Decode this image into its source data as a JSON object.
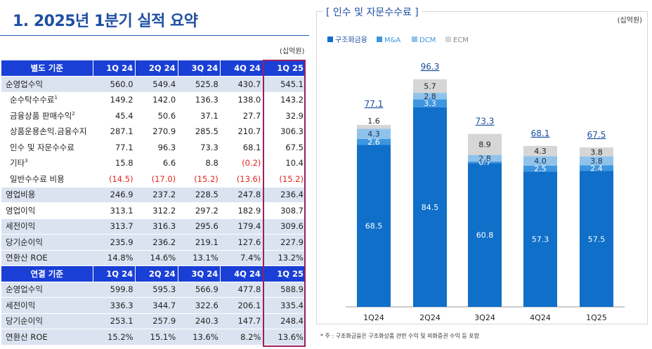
{
  "page_title": "1. 2025년 1분기 실적 요약",
  "unit_left": "(십억원)",
  "table_standalone": {
    "header": [
      "별도 기준",
      "1Q 24",
      "2Q 24",
      "3Q 24",
      "4Q 24",
      "1Q 25"
    ],
    "rows": [
      {
        "label": "순영업수익",
        "sup": "",
        "values": [
          "560.0",
          "549.4",
          "525.8",
          "430.7",
          "545.1"
        ]
      },
      {
        "label": "순수탁수수료",
        "sup": "1",
        "values": [
          "149.2",
          "142.0",
          "136.3",
          "138.0",
          "143.2"
        ]
      },
      {
        "label": "금융상품 판매수익",
        "sup": "2",
        "values": [
          "45.4",
          "50.6",
          "37.1",
          "27.7",
          "32.9"
        ]
      },
      {
        "label": "상품운용손익.금융수지",
        "sup": "",
        "values": [
          "287.1",
          "270.9",
          "285.5",
          "210.7",
          "306.3"
        ]
      },
      {
        "label": "인수 및 자문수수료",
        "sup": "",
        "values": [
          "77.1",
          "96.3",
          "73.3",
          "68.1",
          "67.5"
        ]
      },
      {
        "label": "기타",
        "sup": "3",
        "values": [
          "15.8",
          "6.6",
          "8.8",
          "(0.2)",
          "10.4"
        ]
      },
      {
        "label": "일반수수료 비용",
        "sup": "",
        "values": [
          "(14.5)",
          "(17.0)",
          "(15.2)",
          "(13.6)",
          "(15.2)"
        ]
      },
      {
        "label": "영업비용",
        "sup": "",
        "values": [
          "246.9",
          "237.2",
          "228.5",
          "247.8",
          "236.4"
        ]
      },
      {
        "label": "영업이익",
        "sup": "",
        "values": [
          "313.1",
          "312.2",
          "297.2",
          "182.9",
          "308.7"
        ]
      },
      {
        "label": "세전이익",
        "sup": "",
        "values": [
          "313.7",
          "316.3",
          "295.6",
          "179.4",
          "309.6"
        ]
      },
      {
        "label": "당기순이익",
        "sup": "",
        "values": [
          "235.9",
          "236.2",
          "219.1",
          "127.6",
          "227.9"
        ]
      },
      {
        "label": "연환산 ROE",
        "sup": "",
        "values": [
          "14.8%",
          "14.6%",
          "13.1%",
          "7.4%",
          "13.2%"
        ]
      }
    ]
  },
  "table_consolidated": {
    "header": [
      "연결 기준",
      "1Q 24",
      "2Q 24",
      "3Q 24",
      "4Q 24",
      "1Q 25"
    ],
    "rows": [
      {
        "label": "순영업수익",
        "sup": "",
        "values": [
          "599.8",
          "595.3",
          "566.9",
          "477.8",
          "588.9"
        ]
      },
      {
        "label": "세전이익",
        "sup": "",
        "values": [
          "336.3",
          "344.7",
          "322.6",
          "206.1",
          "335.4"
        ]
      },
      {
        "label": "당기순이익",
        "sup": "",
        "values": [
          "253.1",
          "257.9",
          "240.3",
          "147.7",
          "248.4"
        ]
      },
      {
        "label": "연환산 ROE",
        "sup": "",
        "values": [
          "15.2%",
          "15.1%",
          "13.6%",
          "8.2%",
          "13.6%"
        ]
      }
    ]
  },
  "chart_footnote": "* 주 : 구조화금융은 구조화상품 관련 수익 및 외화증권 수익 등 포함",
  "chart_data": {
    "type": "bar",
    "stacked": true,
    "title": "[ 인수 및 자문수수료 ]",
    "unit": "(십억원)",
    "categories": [
      "1Q24",
      "2Q24",
      "3Q24",
      "4Q24",
      "1Q25"
    ],
    "series": [
      {
        "name": "구조화금융",
        "color": "#0f6fc9",
        "values": [
          68.5,
          84.5,
          60.8,
          57.3,
          57.5
        ]
      },
      {
        "name": "M&A",
        "color": "#3f96df",
        "values": [
          2.6,
          3.3,
          0.7,
          2.5,
          2.4
        ]
      },
      {
        "name": "DCM",
        "color": "#8fc3ec",
        "values": [
          4.3,
          2.8,
          2.8,
          4.0,
          3.8
        ]
      },
      {
        "name": "ECM",
        "color": "#d6d6d6",
        "values": [
          1.6,
          5.7,
          8.9,
          4.3,
          3.8
        ]
      }
    ],
    "totals": [
      "77.1",
      "96.3",
      "73.3",
      "68.1",
      "67.5"
    ],
    "labels": [
      [
        "68.5",
        "2.6",
        "4.3",
        "1.6"
      ],
      [
        "84.5",
        "3.3",
        "2.8",
        "5.7"
      ],
      [
        "60.8",
        "0.7",
        "2.8",
        "8.9"
      ],
      [
        "57.3",
        "2.5",
        "4.0",
        "4.3"
      ],
      [
        "57.5",
        "2.4",
        "3.8",
        "3.8"
      ]
    ],
    "ylim": [
      0,
      100
    ],
    "legend_position": "top-left",
    "grid": false
  }
}
